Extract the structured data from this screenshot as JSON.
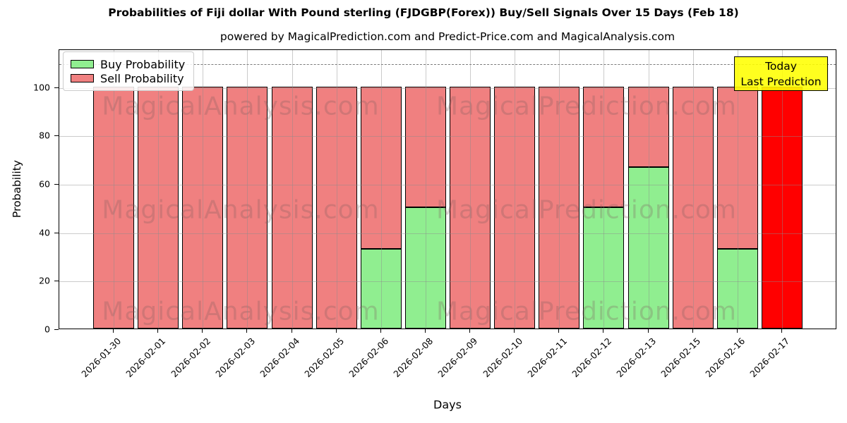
{
  "figure": {
    "title": "Probabilities of Fiji dollar With Pound sterling (FJDGBP(Forex)) Buy/Sell Signals Over 15 Days (Feb 18)",
    "subtitle": "powered by MagicalPrediction.com and Predict-Price.com and MagicalAnalysis.com"
  },
  "chart_data": {
    "type": "bar",
    "stacked": true,
    "title": "Probabilities of Fiji dollar With Pound sterling (FJDGBP(Forex)) Buy/Sell Signals Over 15 Days (Feb 18)",
    "subtitle": "powered by MagicalPrediction.com and Predict-Price.com and MagicalAnalysis.com",
    "xlabel": "Days",
    "ylabel": "Probability",
    "categories": [
      "2026-01-30",
      "2026-02-01",
      "2026-02-02",
      "2026-02-03",
      "2026-02-04",
      "2026-02-05",
      "2026-02-06",
      "2026-02-08",
      "2026-02-09",
      "2026-02-10",
      "2026-02-11",
      "2026-02-12",
      "2026-02-13",
      "2026-02-15",
      "2026-02-16",
      "2026-02-17"
    ],
    "series": [
      {
        "name": "Buy Probability",
        "color": "#90ee90",
        "values": [
          0,
          0,
          0,
          0,
          0,
          0,
          33,
          50,
          0,
          0,
          0,
          50,
          66.7,
          0,
          33,
          0
        ]
      },
      {
        "name": "Sell Probability",
        "color": "#f08080",
        "values": [
          100,
          100,
          100,
          100,
          100,
          100,
          67,
          50,
          100,
          100,
          100,
          50,
          33.3,
          100,
          67,
          100
        ]
      }
    ],
    "last_bar": {
      "category": "2026-02-17",
      "color": "#ff0000",
      "label": "Today / Last Prediction"
    },
    "yticks": [
      0,
      20,
      40,
      60,
      80,
      100
    ],
    "ylim": [
      0,
      115.7
    ],
    "dashed_guide_y": 110,
    "grid": true,
    "legend_position": "upper left"
  },
  "legend": {
    "items": [
      {
        "label": "Buy Probability",
        "color": "#90ee90"
      },
      {
        "label": "Sell Probability",
        "color": "#f08080"
      }
    ]
  },
  "today_box": {
    "line1": "Today",
    "line2": "Last Prediction",
    "bg_color": "#ffff00"
  },
  "watermarks": {
    "left": "MagicalAnalysis.com",
    "right": "MagicalPrediction.com"
  },
  "colors": {
    "buy": "#90ee90",
    "sell": "#f08080",
    "today_bar": "#ff0000",
    "annotation_bg": "#ffff00",
    "dashed_line": "#7a7a7a"
  }
}
